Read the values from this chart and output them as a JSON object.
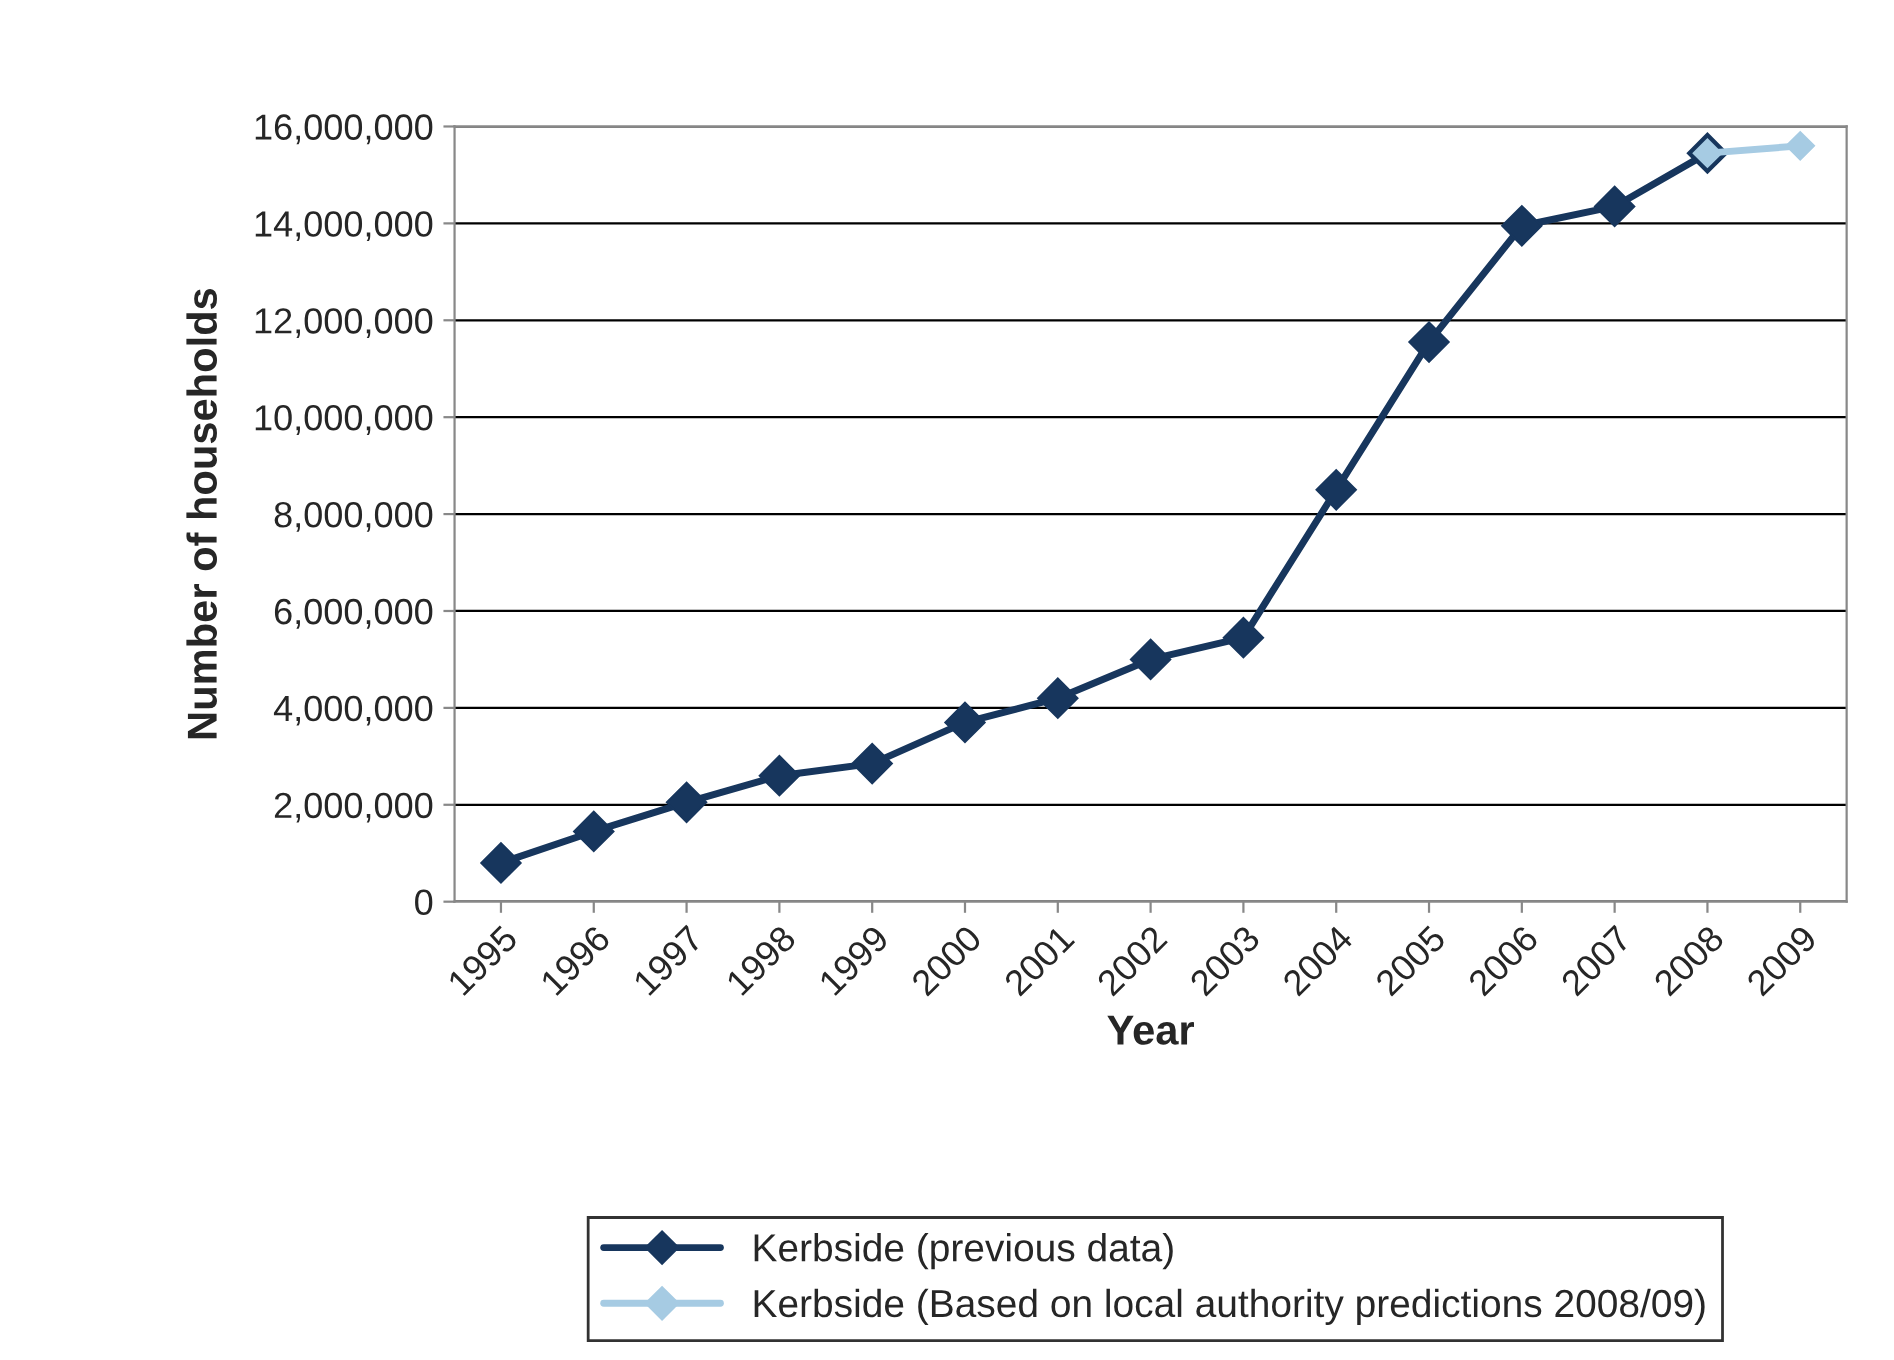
{
  "chart_data": {
    "type": "line",
    "xlabel": "Year",
    "ylabel": "Number of households",
    "categories": [
      "1995",
      "1996",
      "1997",
      "1998",
      "1999",
      "2000",
      "2001",
      "2002",
      "2003",
      "2004",
      "2005",
      "2006",
      "2007",
      "2008",
      "2009"
    ],
    "series": [
      {
        "name": "Kerbside (previous data)",
        "color": "#17365d",
        "values": [
          800000,
          1450000,
          2050000,
          2600000,
          2850000,
          3700000,
          4200000,
          5000000,
          5450000,
          8500000,
          11550000,
          13950000,
          14350000,
          15450000,
          null
        ]
      },
      {
        "name": "Kerbside (Based on local authority predictions 2008/09)",
        "color": "#a6cbe3",
        "values": [
          null,
          null,
          null,
          null,
          null,
          null,
          null,
          null,
          null,
          null,
          null,
          null,
          null,
          15450000,
          15600000
        ]
      }
    ],
    "ylim": [
      0,
      16000000
    ],
    "yticks": [
      0,
      {
        "value": 2000000,
        "label": "2,000,000"
      },
      {
        "value": 4000000,
        "label": "4,000,000"
      },
      {
        "value": 6000000,
        "label": "6,000,000"
      },
      {
        "value": 8000000,
        "label": "8,000,000"
      },
      {
        "value": 10000000,
        "label": "10,000,000"
      },
      {
        "value": 12000000,
        "label": "12,000,000"
      },
      {
        "value": 14000000,
        "label": "14,000,000"
      },
      {
        "value": 16000000,
        "label": "16,000,000"
      }
    ],
    "grid": "y",
    "legend": "bottom",
    "marker": "diamond",
    "line_style": "solid"
  }
}
